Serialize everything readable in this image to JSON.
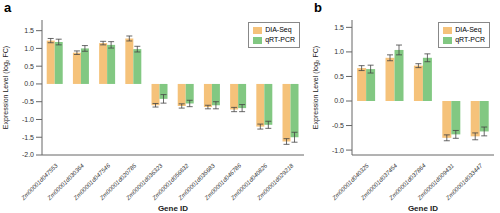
{
  "chart_data": [
    {
      "type": "bar",
      "title": "a",
      "x_label": "Gene ID",
      "y_label": "Expression Level (log₂ FC)",
      "categories": [
        "Zm00001d047553",
        "Zm00001d030364",
        "Zm00001d047546",
        "Zm00001d020785",
        "Zm00001d036323",
        "Zm00001d056632",
        "Zm00001d035683",
        "Zm00001d046786",
        "Zm00001d040826",
        "Zm00001d029218"
      ],
      "series": [
        {
          "name": "DIA-Seq",
          "color": "#F5C27A",
          "values": [
            1.22,
            0.88,
            1.15,
            1.28,
            -0.6,
            -0.62,
            -0.65,
            -0.72,
            -1.2,
            -1.62
          ],
          "errors": [
            0.06,
            0.05,
            0.05,
            0.07,
            0.05,
            0.06,
            0.05,
            0.06,
            0.07,
            0.08
          ]
        },
        {
          "name": "qRT-PCR",
          "color": "#82C882",
          "values": [
            1.18,
            1.0,
            1.1,
            0.98,
            -0.42,
            -0.55,
            -0.6,
            -0.68,
            -1.15,
            -1.5
          ],
          "errors": [
            0.08,
            0.08,
            0.09,
            0.08,
            0.12,
            0.09,
            0.1,
            0.1,
            0.1,
            0.14
          ]
        }
      ],
      "ylim": [
        -2.0,
        1.8
      ],
      "yticks": [
        {
          "value": -2.0,
          "label": "-2.0"
        },
        -1.5,
        {
          "value": -1.0,
          "label": "-1.0"
        },
        -0.5,
        {
          "value": 0.0,
          "label": "0.0"
        },
        0.5,
        {
          "value": 1.0,
          "label": "1.0"
        },
        1.5
      ],
      "grid": false,
      "legend": "upper right"
    },
    {
      "type": "bar",
      "title": "b",
      "x_label": "Gene ID",
      "y_label": "Expression Level (log₂ FC)",
      "categories": [
        "Zm00001d040325",
        "Zm00001d037454",
        "Zm00001d037864",
        "Zm00001d009431",
        "Zm00001d033447"
      ],
      "series": [
        {
          "name": "DIA-Seq",
          "color": "#F5C27A",
          "values": [
            0.67,
            0.88,
            0.72,
            -0.75,
            -0.72
          ],
          "errors": [
            0.05,
            0.06,
            0.04,
            0.06,
            0.07
          ]
        },
        {
          "name": "qRT-PCR",
          "color": "#82C882",
          "values": [
            0.65,
            1.04,
            0.88,
            -0.68,
            -0.62
          ],
          "errors": [
            0.08,
            0.1,
            0.08,
            0.08,
            0.09
          ]
        }
      ],
      "ylim": [
        -1.1,
        1.65
      ],
      "yticks": [
        {
          "value": -1.0,
          "label": "-1.0"
        },
        -0.5,
        {
          "value": 0.0,
          "label": "0.0"
        },
        0.5,
        {
          "value": 1.0,
          "label": "1.0"
        },
        1.5
      ],
      "grid": false,
      "legend": "upper right"
    }
  ]
}
